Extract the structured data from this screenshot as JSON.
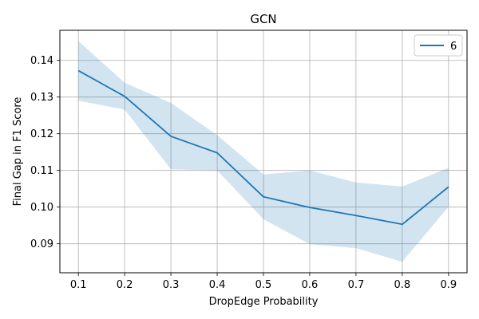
{
  "chart_data": {
    "type": "line",
    "title": "GCN",
    "xlabel": "DropEdge Probability",
    "ylabel": "Final Gap in F1 Score",
    "x": [
      0.1,
      0.2,
      0.3,
      0.4,
      0.5,
      0.6,
      0.7,
      0.8,
      0.9
    ],
    "x_ticks": [
      "0.1",
      "0.2",
      "0.3",
      "0.4",
      "0.5",
      "0.6",
      "0.7",
      "0.8",
      "0.9"
    ],
    "y_ticks": [
      "0.09",
      "0.10",
      "0.11",
      "0.12",
      "0.13",
      "0.14"
    ],
    "xlim": [
      0.06,
      0.94
    ],
    "ylim": [
      0.0821,
      0.1482
    ],
    "grid": true,
    "legend_position": "top-right",
    "colors": {
      "line": "#1f77b4",
      "band": "#1f77b4"
    },
    "series": [
      {
        "name": "6",
        "values": [
          0.1372,
          0.1302,
          0.1193,
          0.1148,
          0.1028,
          0.0999,
          0.0977,
          0.0953,
          0.1055
        ],
        "lower": [
          0.129,
          0.1266,
          0.1103,
          0.11,
          0.0967,
          0.0899,
          0.0888,
          0.0851,
          0.1001
        ],
        "upper": [
          0.1453,
          0.1339,
          0.1284,
          0.1196,
          0.1089,
          0.11,
          0.1067,
          0.1056,
          0.1107
        ]
      }
    ]
  }
}
